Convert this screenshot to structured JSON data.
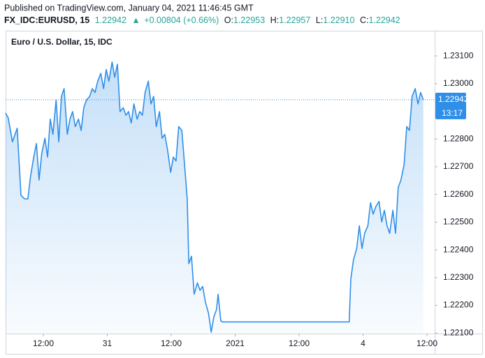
{
  "header": {
    "published": "Published on TradingView.com, January 04, 2021 11:46:45 GMT",
    "symbol": "FX_IDC:EURUSD, 15",
    "price": "1.22942",
    "change": "+0.00804 (+0.66%)",
    "ohlc": [
      {
        "label": "O:",
        "value": "1.22953"
      },
      {
        "label": "H:",
        "value": "1.22957"
      },
      {
        "label": "L:",
        "value": "1.22910"
      },
      {
        "label": "C:",
        "value": "1.22942"
      }
    ]
  },
  "chart_data": {
    "type": "line",
    "title": "Euro / U.S. Dollar, 15, IDC",
    "x": [
      -7.1,
      -6.6,
      -5.8,
      -4.9,
      -4.2,
      -3.5,
      -2.9,
      -2.4,
      -1.8,
      -1.3,
      -0.8,
      -0.3,
      0.3,
      0.8,
      1.3,
      1.8,
      2.4,
      2.9,
      3.4,
      3.9,
      4.5,
      5.0,
      5.5,
      6.0,
      6.6,
      7.1,
      7.6,
      8.1,
      8.7,
      9.2,
      9.7,
      10.2,
      10.8,
      11.3,
      11.8,
      12.3,
      12.9,
      13.4,
      13.9,
      14.4,
      15.0,
      15.5,
      16.0,
      16.5,
      17.0,
      17.6,
      18.1,
      18.6,
      19.1,
      19.7,
      20.2,
      20.7,
      21.2,
      21.8,
      22.3,
      22.8,
      23.3,
      23.9,
      24.4,
      24.9,
      25.4,
      26.0,
      26.5,
      27.0,
      27.3,
      27.8,
      28.3,
      28.9,
      29.4,
      29.9,
      30.4,
      31.0,
      31.5,
      32.0,
      32.5,
      32.8,
      33.3,
      33.6,
      57.4,
      57.7,
      58.2,
      58.8,
      59.3,
      59.8,
      60.3,
      60.9,
      61.4,
      61.9,
      62.4,
      63.0,
      63.5,
      64.0,
      64.5,
      65.0,
      65.6,
      66.1,
      66.6,
      67.1,
      67.7,
      68.2,
      68.7,
      69.2,
      69.8,
      70.3,
      70.8,
      71.3
    ],
    "series": [
      {
        "name": "EURUSD",
        "color": "#2f8fe8",
        "values": [
          1.22894,
          1.22877,
          1.2279,
          1.22839,
          1.22597,
          1.22584,
          1.22584,
          1.22666,
          1.22735,
          1.22784,
          1.22652,
          1.22748,
          1.22803,
          1.22735,
          1.22872,
          1.22817,
          1.22941,
          1.2279,
          1.22954,
          1.22982,
          1.22817,
          1.22872,
          1.22899,
          1.22845,
          1.22872,
          1.22831,
          1.22913,
          1.22941,
          1.22954,
          1.22982,
          1.22968,
          1.23009,
          1.23037,
          1.22982,
          1.23051,
          1.23009,
          1.23078,
          1.23023,
          1.2307,
          1.22899,
          1.22913,
          1.22886,
          1.22899,
          1.22858,
          1.22927,
          1.22872,
          1.22899,
          1.22886,
          1.22968,
          1.23009,
          1.22927,
          1.22954,
          1.22845,
          1.22899,
          1.22803,
          1.22817,
          1.22762,
          1.2268,
          1.22735,
          1.22721,
          1.22845,
          1.22831,
          1.22707,
          1.22584,
          1.2235,
          1.22377,
          1.2224,
          1.22281,
          1.22254,
          1.22268,
          1.22213,
          1.22171,
          1.22103,
          1.22158,
          1.22185,
          1.2224,
          1.22144,
          1.2214,
          1.2214,
          1.22295,
          1.22364,
          1.22405,
          1.22487,
          1.22405,
          1.2246,
          1.22487,
          1.2257,
          1.22529,
          1.22556,
          1.22575,
          1.22501,
          1.22543,
          1.22487,
          1.2246,
          1.22543,
          1.2246,
          1.22625,
          1.22652,
          1.22707,
          1.22845,
          1.22831,
          1.22954,
          1.22982,
          1.22927,
          1.22968,
          1.22941
        ]
      }
    ],
    "xlim": [
      -7.08,
      73.44
    ],
    "xticks": [
      {
        "value": 0,
        "label": "12:00"
      },
      {
        "value": 12,
        "label": "31"
      },
      {
        "value": 24,
        "label": "12:00"
      },
      {
        "value": 36,
        "label": "2021"
      },
      {
        "value": 48,
        "label": "12:00"
      },
      {
        "value": 60,
        "label": "4"
      },
      {
        "value": 72,
        "label": "12:00"
      }
    ],
    "ylim": [
      1.22098,
      1.23191
    ],
    "yticks": [
      {
        "value": 1.231,
        "label": "1.23100"
      },
      {
        "value": 1.23,
        "label": "1.23000"
      },
      {
        "value": 1.228,
        "label": "1.22800"
      },
      {
        "value": 1.227,
        "label": "1.22700"
      },
      {
        "value": 1.226,
        "label": "1.22600"
      },
      {
        "value": 1.225,
        "label": "1.22500"
      },
      {
        "value": 1.224,
        "label": "1.22400"
      },
      {
        "value": 1.223,
        "label": "1.22300"
      },
      {
        "value": 1.222,
        "label": "1.22200"
      },
      {
        "value": 1.221,
        "label": "1.22100"
      }
    ],
    "last_price": {
      "value": 1.22942,
      "label": "1.22942"
    },
    "countdown": "13:17",
    "grid": false
  }
}
